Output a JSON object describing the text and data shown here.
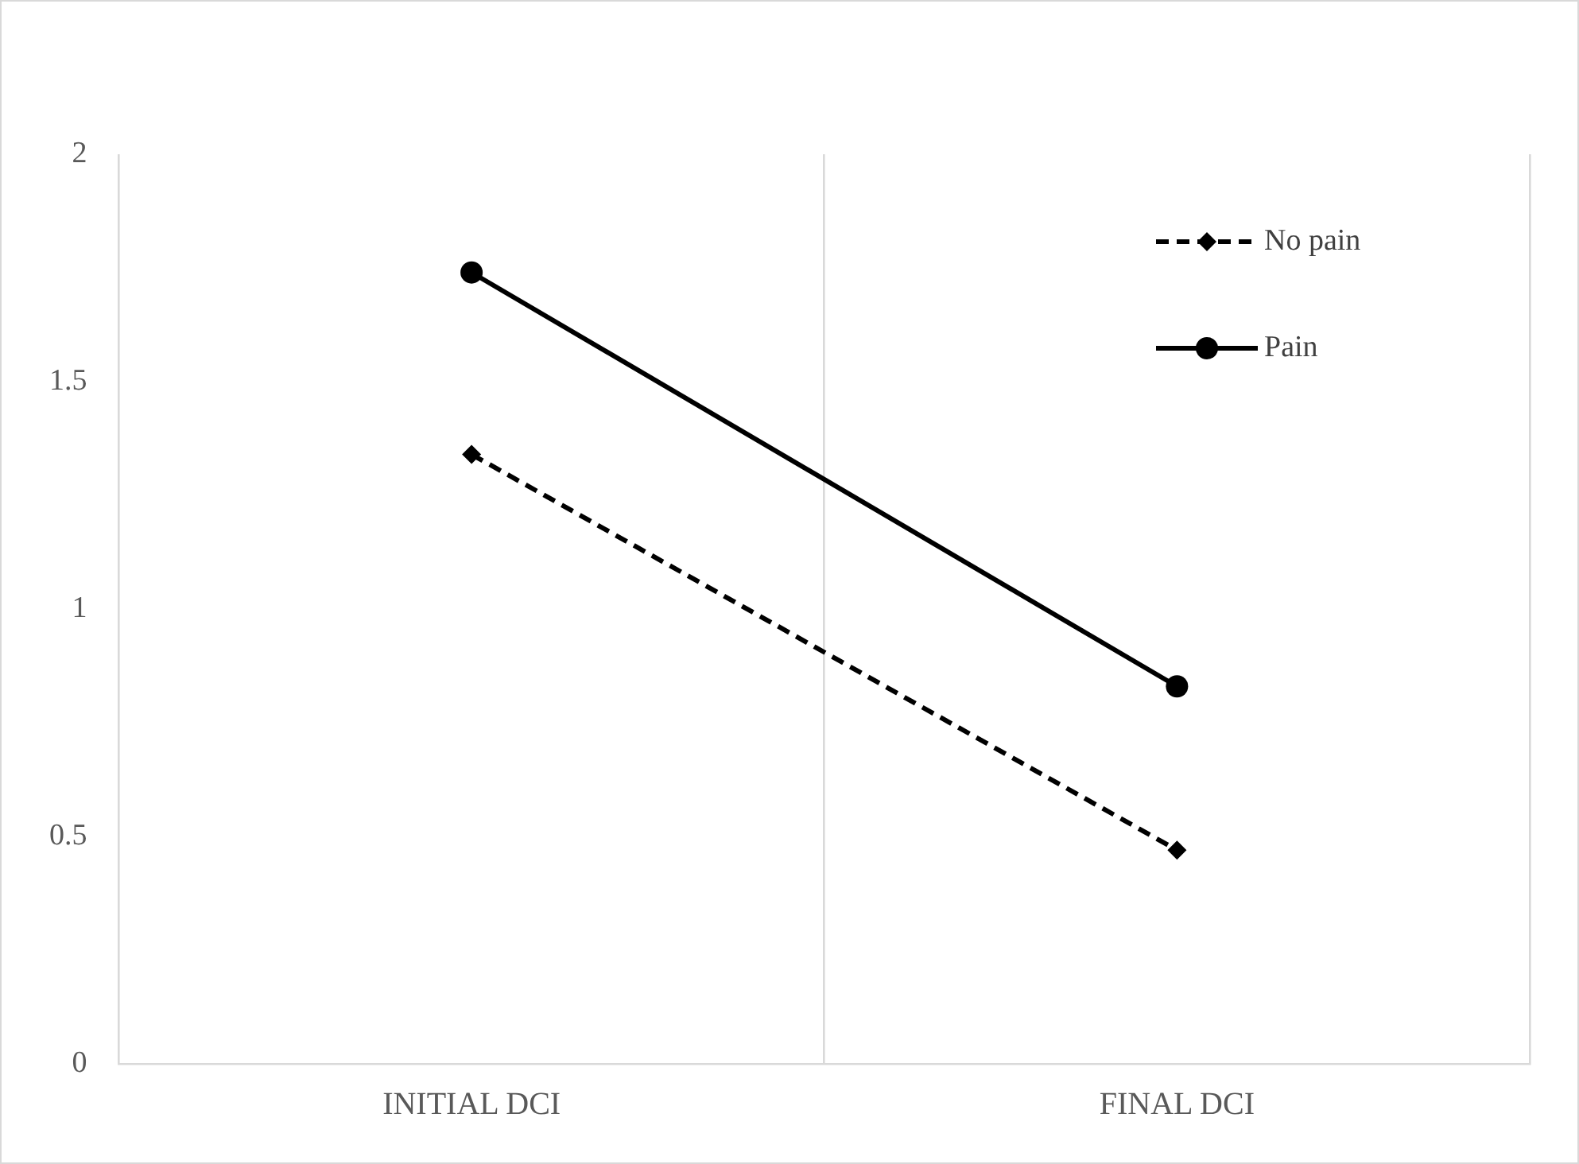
{
  "chart_data": {
    "type": "line",
    "categories": [
      "INITIAL DCI",
      "FINAL DCI"
    ],
    "series": [
      {
        "name": "No pain",
        "color": "#000000",
        "values": [
          1.34,
          0.47
        ],
        "marker": "diamond",
        "line_style": "dashed"
      },
      {
        "name": "Pain",
        "color": "#000000",
        "values": [
          1.74,
          0.83
        ],
        "marker": "circle",
        "line_style": "solid"
      }
    ],
    "ylim": [
      0,
      2
    ],
    "yticks": [
      0,
      0.5,
      1,
      1.5,
      2
    ],
    "grid": "x",
    "legend": "top right"
  }
}
